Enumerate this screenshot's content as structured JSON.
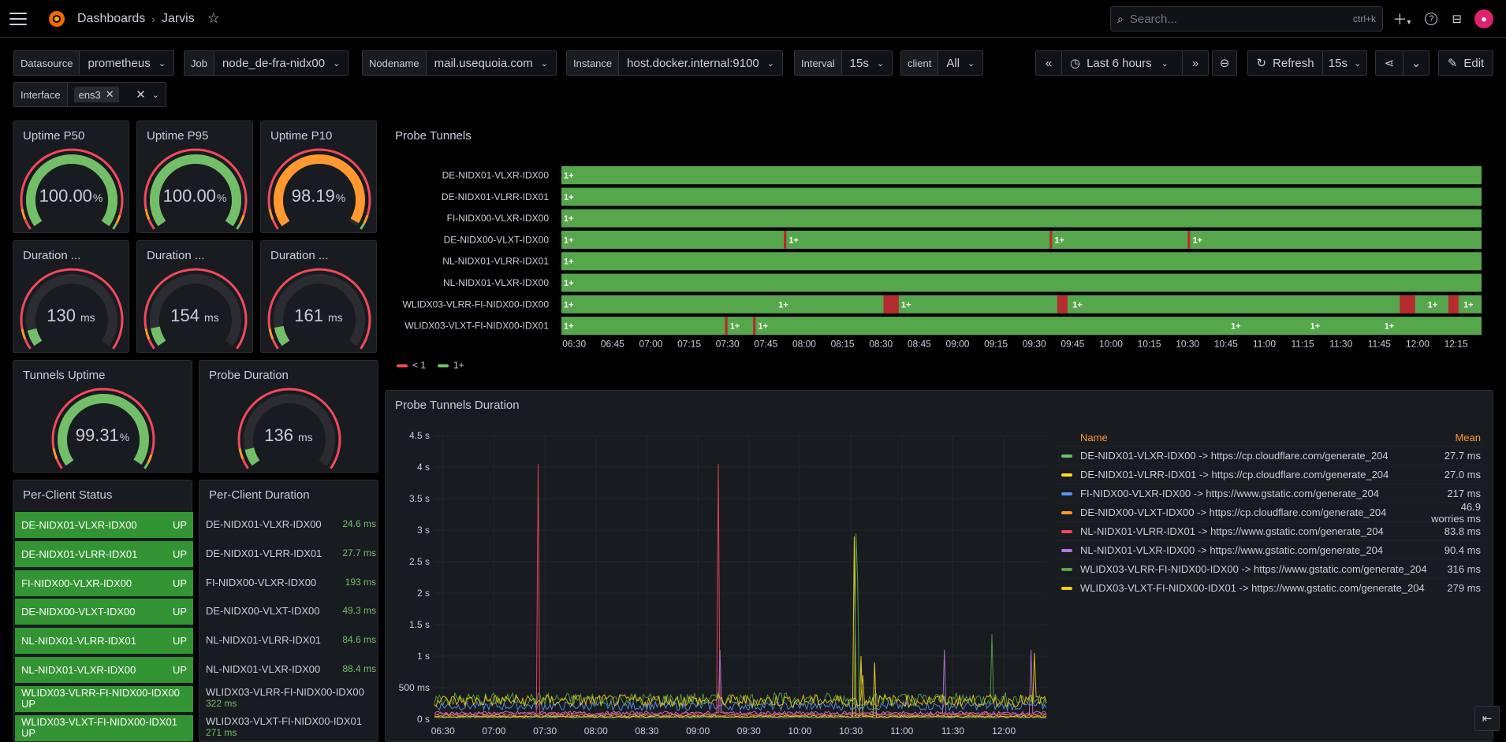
{
  "nav": {
    "breadcrumb_root": "Dashboards",
    "breadcrumb_current": "Jarvis",
    "search_placeholder": "Search...",
    "search_shortcut": "ctrl+k"
  },
  "variables": {
    "datasource": {
      "label": "Datasource",
      "value": "prometheus"
    },
    "job": {
      "label": "Job",
      "value": "node_de-fra-nidx00"
    },
    "nodename": {
      "label": "Nodename",
      "value": "mail.usequoia.com"
    },
    "instance": {
      "label": "Instance",
      "value": "host.docker.internal:9100"
    },
    "interval": {
      "label": "Interval",
      "value": "15s"
    },
    "client": {
      "label": "client",
      "value": "All"
    },
    "interface": {
      "label": "Interface",
      "value": "ens3"
    }
  },
  "toolbar": {
    "time_range": "Last 6 hours",
    "refresh_label": "Refresh",
    "refresh_interval": "15s",
    "edit_label": "Edit"
  },
  "gauges": {
    "uptime_p50": {
      "title": "Uptime P50",
      "value": "100.00",
      "unit": "%"
    },
    "uptime_p95": {
      "title": "Uptime P95",
      "value": "100.00",
      "unit": "%"
    },
    "uptime_p10": {
      "title": "Uptime P10",
      "value": "98.19",
      "unit": "%"
    },
    "duration_1": {
      "title": "Duration ...",
      "value": "130",
      "unit": "ms"
    },
    "duration_2": {
      "title": "Duration ...",
      "value": "154",
      "unit": "ms"
    },
    "duration_3": {
      "title": "Duration ...",
      "value": "161",
      "unit": "ms"
    },
    "tunnels_uptime": {
      "title": "Tunnels Uptime",
      "value": "99.31",
      "unit": "%"
    },
    "probe_duration": {
      "title": "Probe Duration",
      "value": "136",
      "unit": "ms"
    }
  },
  "per_client_status": {
    "title": "Per-Client Status",
    "rows": [
      {
        "name": "DE-NIDX01-VLXR-IDX00",
        "status": "UP"
      },
      {
        "name": "DE-NIDX01-VLRR-IDX01",
        "status": "UP"
      },
      {
        "name": "FI-NIDX00-VLXR-IDX00",
        "status": "UP"
      },
      {
        "name": "DE-NIDX00-VLXT-IDX00",
        "status": "UP"
      },
      {
        "name": "NL-NIDX01-VLRR-IDX01",
        "status": "UP"
      },
      {
        "name": "NL-NIDX01-VLXR-IDX00",
        "status": "UP"
      },
      {
        "name": "WLIDX03-VLRR-FI-NIDX00-IDX00",
        "status": "UP"
      },
      {
        "name": "WLIDX03-VLXT-FI-NIDX00-IDX01",
        "status": "UP"
      }
    ]
  },
  "per_client_duration": {
    "title": "Per-Client Duration",
    "rows": [
      {
        "name": "DE-NIDX01-VLXR-IDX00",
        "value": "24.6 ms"
      },
      {
        "name": "DE-NIDX01-VLRR-IDX01",
        "value": "27.7 ms"
      },
      {
        "name": "FI-NIDX00-VLXR-IDX00",
        "value": "193 ms"
      },
      {
        "name": "DE-NIDX00-VLXT-IDX00",
        "value": "49.3 ms"
      },
      {
        "name": "NL-NIDX01-VLRR-IDX01",
        "value": "84.6 ms"
      },
      {
        "name": "NL-NIDX01-VLXR-IDX00",
        "value": "88.4 ms"
      },
      {
        "name": "WLIDX03-VLRR-FI-NIDX00-IDX00",
        "value": "322 ms"
      },
      {
        "name": "WLIDX03-VLXT-FI-NIDX00-IDX01",
        "value": "271 ms"
      }
    ]
  },
  "chart_data": [
    {
      "type": "state-timeline",
      "title": "Probe Tunnels",
      "rows": [
        "DE-NIDX01-VLXR-IDX00",
        "DE-NIDX01-VLRR-IDX01",
        "FI-NIDX00-VLXR-IDX00",
        "DE-NIDX00-VLXT-IDX00",
        "NL-NIDX01-VLRR-IDX01",
        "NL-NIDX01-VLXR-IDX00",
        "WLIDX03-VLRR-FI-NIDX00-IDX00",
        "WLIDX03-VLXT-FI-NIDX00-IDX01"
      ],
      "x_ticks": [
        "06:30",
        "06:45",
        "07:00",
        "07:15",
        "07:30",
        "07:45",
        "08:00",
        "08:15",
        "08:30",
        "08:45",
        "09:00",
        "09:15",
        "09:30",
        "09:45",
        "10:00",
        "10:15",
        "10:30",
        "10:45",
        "11:00",
        "11:15",
        "11:30",
        "11:45",
        "12:00",
        "12:15"
      ],
      "x_range": [
        "06:25",
        "12:25"
      ],
      "states": [
        {
          "label": "< 1",
          "color": "#f2495c"
        },
        {
          "label": "1+",
          "color": "#73bf69"
        }
      ],
      "state_labels": [
        [
          "06:25"
        ],
        [
          "06:25"
        ],
        [
          "06:25"
        ],
        [
          "06:25",
          "07:53",
          "09:37",
          "10:31"
        ],
        [
          "06:25"
        ],
        [
          "06:25"
        ],
        [
          "06:25",
          "07:49",
          "08:37",
          "09:44",
          "12:03",
          "12:17"
        ],
        [
          "06:25",
          "07:30",
          "07:41",
          "10:46",
          "11:17",
          "11:46"
        ]
      ],
      "down_periods": [
        {
          "row": 3,
          "from": "07:52",
          "to": "07:53"
        },
        {
          "row": 3,
          "from": "09:36",
          "to": "09:37"
        },
        {
          "row": 3,
          "from": "10:30",
          "to": "10:31"
        },
        {
          "row": 6,
          "from": "08:31",
          "to": "08:37"
        },
        {
          "row": 6,
          "from": "09:39",
          "to": "09:43"
        },
        {
          "row": 6,
          "from": "11:53",
          "to": "11:59"
        },
        {
          "row": 6,
          "from": "12:12",
          "to": "12:16"
        },
        {
          "row": 7,
          "from": "07:29",
          "to": "07:30"
        },
        {
          "row": 7,
          "from": "07:40",
          "to": "07:41"
        }
      ]
    },
    {
      "type": "line",
      "title": "Probe Tunnels Duration",
      "y_ticks": [
        "0 s",
        "500 ms",
        "1 s",
        "1.5 s",
        "2 s",
        "2.5 s",
        "3 s",
        "3.5 s",
        "4 s",
        "4.5 s"
      ],
      "ylim": [
        0,
        4.5
      ],
      "y_unit": "s",
      "x_ticks": [
        "06:30",
        "07:00",
        "07:30",
        "08:00",
        "08:30",
        "09:00",
        "09:30",
        "10:00",
        "10:30",
        "11:00",
        "11:30",
        "12:00"
      ],
      "x_range": [
        "06:25",
        "12:25"
      ],
      "legend_header": {
        "name": "Name",
        "mean": "Mean"
      },
      "series": [
        {
          "name": "DE-NIDX01-VLXR-IDX00 -> https://cp.cloudflare.com/generate_204",
          "mean": "27.7 ms",
          "color": "#73bf69",
          "baseline": 0.03,
          "spikes": []
        },
        {
          "name": "DE-NIDX01-VLRR-IDX01 -> https://cp.cloudflare.com/generate_204",
          "mean": "27.0 ms",
          "color": "#fade2a",
          "baseline": 0.04,
          "spikes": [
            {
              "x": "10:32",
              "y": 2.9
            },
            {
              "x": "10:36",
              "y": 1.0
            },
            {
              "x": "10:44",
              "y": 0.9
            }
          ]
        },
        {
          "name": "FI-NIDX00-VLXR-IDX00 -> https://www.gstatic.com/generate_204",
          "mean": "217 ms",
          "color": "#5794f2",
          "baseline": 0.2,
          "spikes": []
        },
        {
          "name": "DE-NIDX00-VLXT-IDX00 -> https://cp.cloudflare.com/generate_204",
          "mean": "46.9 worries ms",
          "color": "#ff9830",
          "baseline": 0.06,
          "spikes": []
        },
        {
          "name": "NL-NIDX01-VLRR-IDX01 -> https://www.gstatic.com/generate_204",
          "mean": "83.8 ms",
          "color": "#f2495c",
          "baseline": 0.08,
          "spikes": [
            {
              "x": "07:26",
              "y": 4.05
            },
            {
              "x": "09:12",
              "y": 4.05
            }
          ]
        },
        {
          "name": "NL-NIDX01-VLXR-IDX00 -> https://www.gstatic.com/generate_204",
          "mean": "90.4 ms",
          "color": "#b877d9",
          "baseline": 0.09,
          "spikes": [
            {
              "x": "09:13",
              "y": 1.1
            },
            {
              "x": "11:25",
              "y": 1.1
            },
            {
              "x": "12:16",
              "y": 1.1
            }
          ]
        },
        {
          "name": "WLIDX03-VLRR-FI-NIDX00-IDX00 -> https://www.gstatic.com/generate_204",
          "mean": "316 ms",
          "color": "#56a64b",
          "baseline": 0.3,
          "spikes": [
            {
              "x": "10:33",
              "y": 2.95
            },
            {
              "x": "10:34",
              "y": 2.2
            },
            {
              "x": "11:53",
              "y": 1.35
            }
          ]
        },
        {
          "name": "WLIDX03-VLXT-FI-NIDX00-IDX01 -> https://www.gstatic.com/generate_204",
          "mean": "279 ms",
          "color": "#f2cc0c",
          "baseline": 0.28,
          "spikes": [
            {
              "x": "10:37",
              "y": 0.7
            },
            {
              "x": "12:18",
              "y": 1.05
            }
          ]
        }
      ]
    }
  ]
}
